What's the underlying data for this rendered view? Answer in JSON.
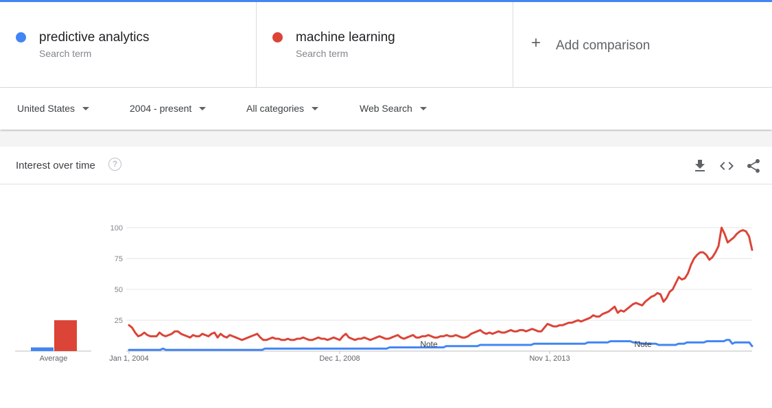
{
  "terms": [
    {
      "name": "predictive analytics",
      "sub": "Search term",
      "color": "#4285f4"
    },
    {
      "name": "machine learning",
      "sub": "Search term",
      "color": "#db4437"
    }
  ],
  "add": {
    "label": "Add comparison",
    "plus": "+"
  },
  "filters": {
    "region": "United States",
    "time": "2004 - present",
    "category": "All categories",
    "search_type": "Web Search"
  },
  "card": {
    "title": "Interest over time",
    "help": "?"
  },
  "icons": [
    "download-icon",
    "embed-code-icon",
    "share-icon",
    "help-icon",
    "plus-icon",
    "dropdown-caret-icon"
  ],
  "chart_data": {
    "type": "line",
    "ylim": [
      0,
      100
    ],
    "y_ticks": [
      "100",
      "75",
      "50",
      "25"
    ],
    "x_labels": [
      "Jan 1, 2004",
      "Dec 1, 2008",
      "Nov 1, 2013"
    ],
    "notes": [
      "Note",
      "Note"
    ],
    "average": {
      "label": "Average",
      "values": [
        3,
        25
      ]
    },
    "series": [
      {
        "name": "predictive analytics",
        "color": "#4285f4",
        "values": [
          1,
          1,
          1,
          1,
          1,
          1,
          1,
          1,
          1,
          1,
          1,
          1,
          2,
          1,
          1,
          1,
          1,
          1,
          1,
          1,
          1,
          1,
          1,
          1,
          1,
          1,
          1,
          1,
          1,
          1,
          1,
          1,
          1,
          1,
          1,
          1,
          1,
          1,
          1,
          1,
          1,
          1,
          1,
          1,
          1,
          1,
          1,
          1,
          2,
          2,
          2,
          2,
          2,
          2,
          2,
          2,
          2,
          2,
          2,
          2,
          2,
          2,
          2,
          2,
          2,
          2,
          2,
          2,
          2,
          2,
          2,
          2,
          2,
          2,
          2,
          2,
          2,
          2,
          2,
          2,
          2,
          2,
          2,
          2,
          2,
          2,
          2,
          2,
          2,
          2,
          2,
          2,
          3,
          3,
          3,
          3,
          3,
          3,
          3,
          3,
          3,
          3,
          3,
          3,
          3,
          3,
          3,
          3,
          3,
          3,
          3,
          3,
          4,
          4,
          4,
          4,
          4,
          4,
          4,
          4,
          4,
          4,
          4,
          4,
          5,
          5,
          5,
          5,
          5,
          5,
          5,
          5,
          5,
          5,
          5,
          5,
          5,
          5,
          5,
          5,
          5,
          5,
          5,
          6,
          6,
          6,
          6,
          6,
          6,
          6,
          6,
          6,
          6,
          6,
          6,
          6,
          6,
          6,
          6,
          6,
          6,
          6,
          7,
          7,
          7,
          7,
          7,
          7,
          7,
          7,
          8,
          8,
          8,
          8,
          8,
          8,
          8,
          8,
          7,
          7,
          7,
          6,
          6,
          6,
          6,
          6,
          6,
          5,
          5,
          5,
          5,
          5,
          5,
          5,
          6,
          6,
          6,
          7,
          7,
          7,
          7,
          7,
          7,
          7,
          8,
          8,
          8,
          8,
          8,
          8,
          8,
          9,
          9,
          6,
          7,
          7,
          7,
          7,
          7,
          7,
          4
        ]
      },
      {
        "name": "machine learning",
        "color": "#db4437",
        "values": [
          21,
          19,
          15,
          12,
          13,
          15,
          13,
          12,
          12,
          12,
          15,
          13,
          12,
          13,
          14,
          16,
          16,
          14,
          13,
          12,
          11,
          13,
          12,
          12,
          14,
          13,
          12,
          14,
          15,
          11,
          14,
          12,
          11,
          13,
          12,
          11,
          10,
          9,
          10,
          11,
          12,
          13,
          14,
          11,
          9,
          9,
          10,
          11,
          10,
          10,
          9,
          9,
          10,
          9,
          9,
          10,
          10,
          11,
          10,
          9,
          9,
          10,
          11,
          10,
          10,
          9,
          10,
          11,
          10,
          9,
          12,
          14,
          11,
          10,
          9,
          10,
          10,
          11,
          10,
          9,
          10,
          11,
          12,
          11,
          10,
          10,
          11,
          12,
          13,
          11,
          10,
          11,
          12,
          13,
          11,
          11,
          12,
          12,
          13,
          12,
          11,
          11,
          12,
          12,
          13,
          12,
          12,
          13,
          12,
          11,
          11,
          12,
          14,
          15,
          16,
          17,
          15,
          14,
          15,
          14,
          15,
          16,
          15,
          15,
          16,
          17,
          16,
          16,
          17,
          17,
          16,
          17,
          18,
          17,
          16,
          16,
          19,
          22,
          21,
          20,
          20,
          21,
          21,
          22,
          23,
          23,
          24,
          25,
          24,
          25,
          26,
          27,
          29,
          28,
          28,
          30,
          31,
          32,
          34,
          36,
          31,
          33,
          32,
          34,
          36,
          38,
          39,
          38,
          37,
          40,
          42,
          44,
          45,
          47,
          46,
          40,
          43,
          48,
          50,
          55,
          60,
          58,
          59,
          63,
          70,
          75,
          78,
          80,
          80,
          78,
          74,
          76,
          80,
          85,
          100,
          95,
          88,
          90,
          92,
          95,
          97,
          98,
          97,
          93,
          82
        ]
      }
    ]
  }
}
